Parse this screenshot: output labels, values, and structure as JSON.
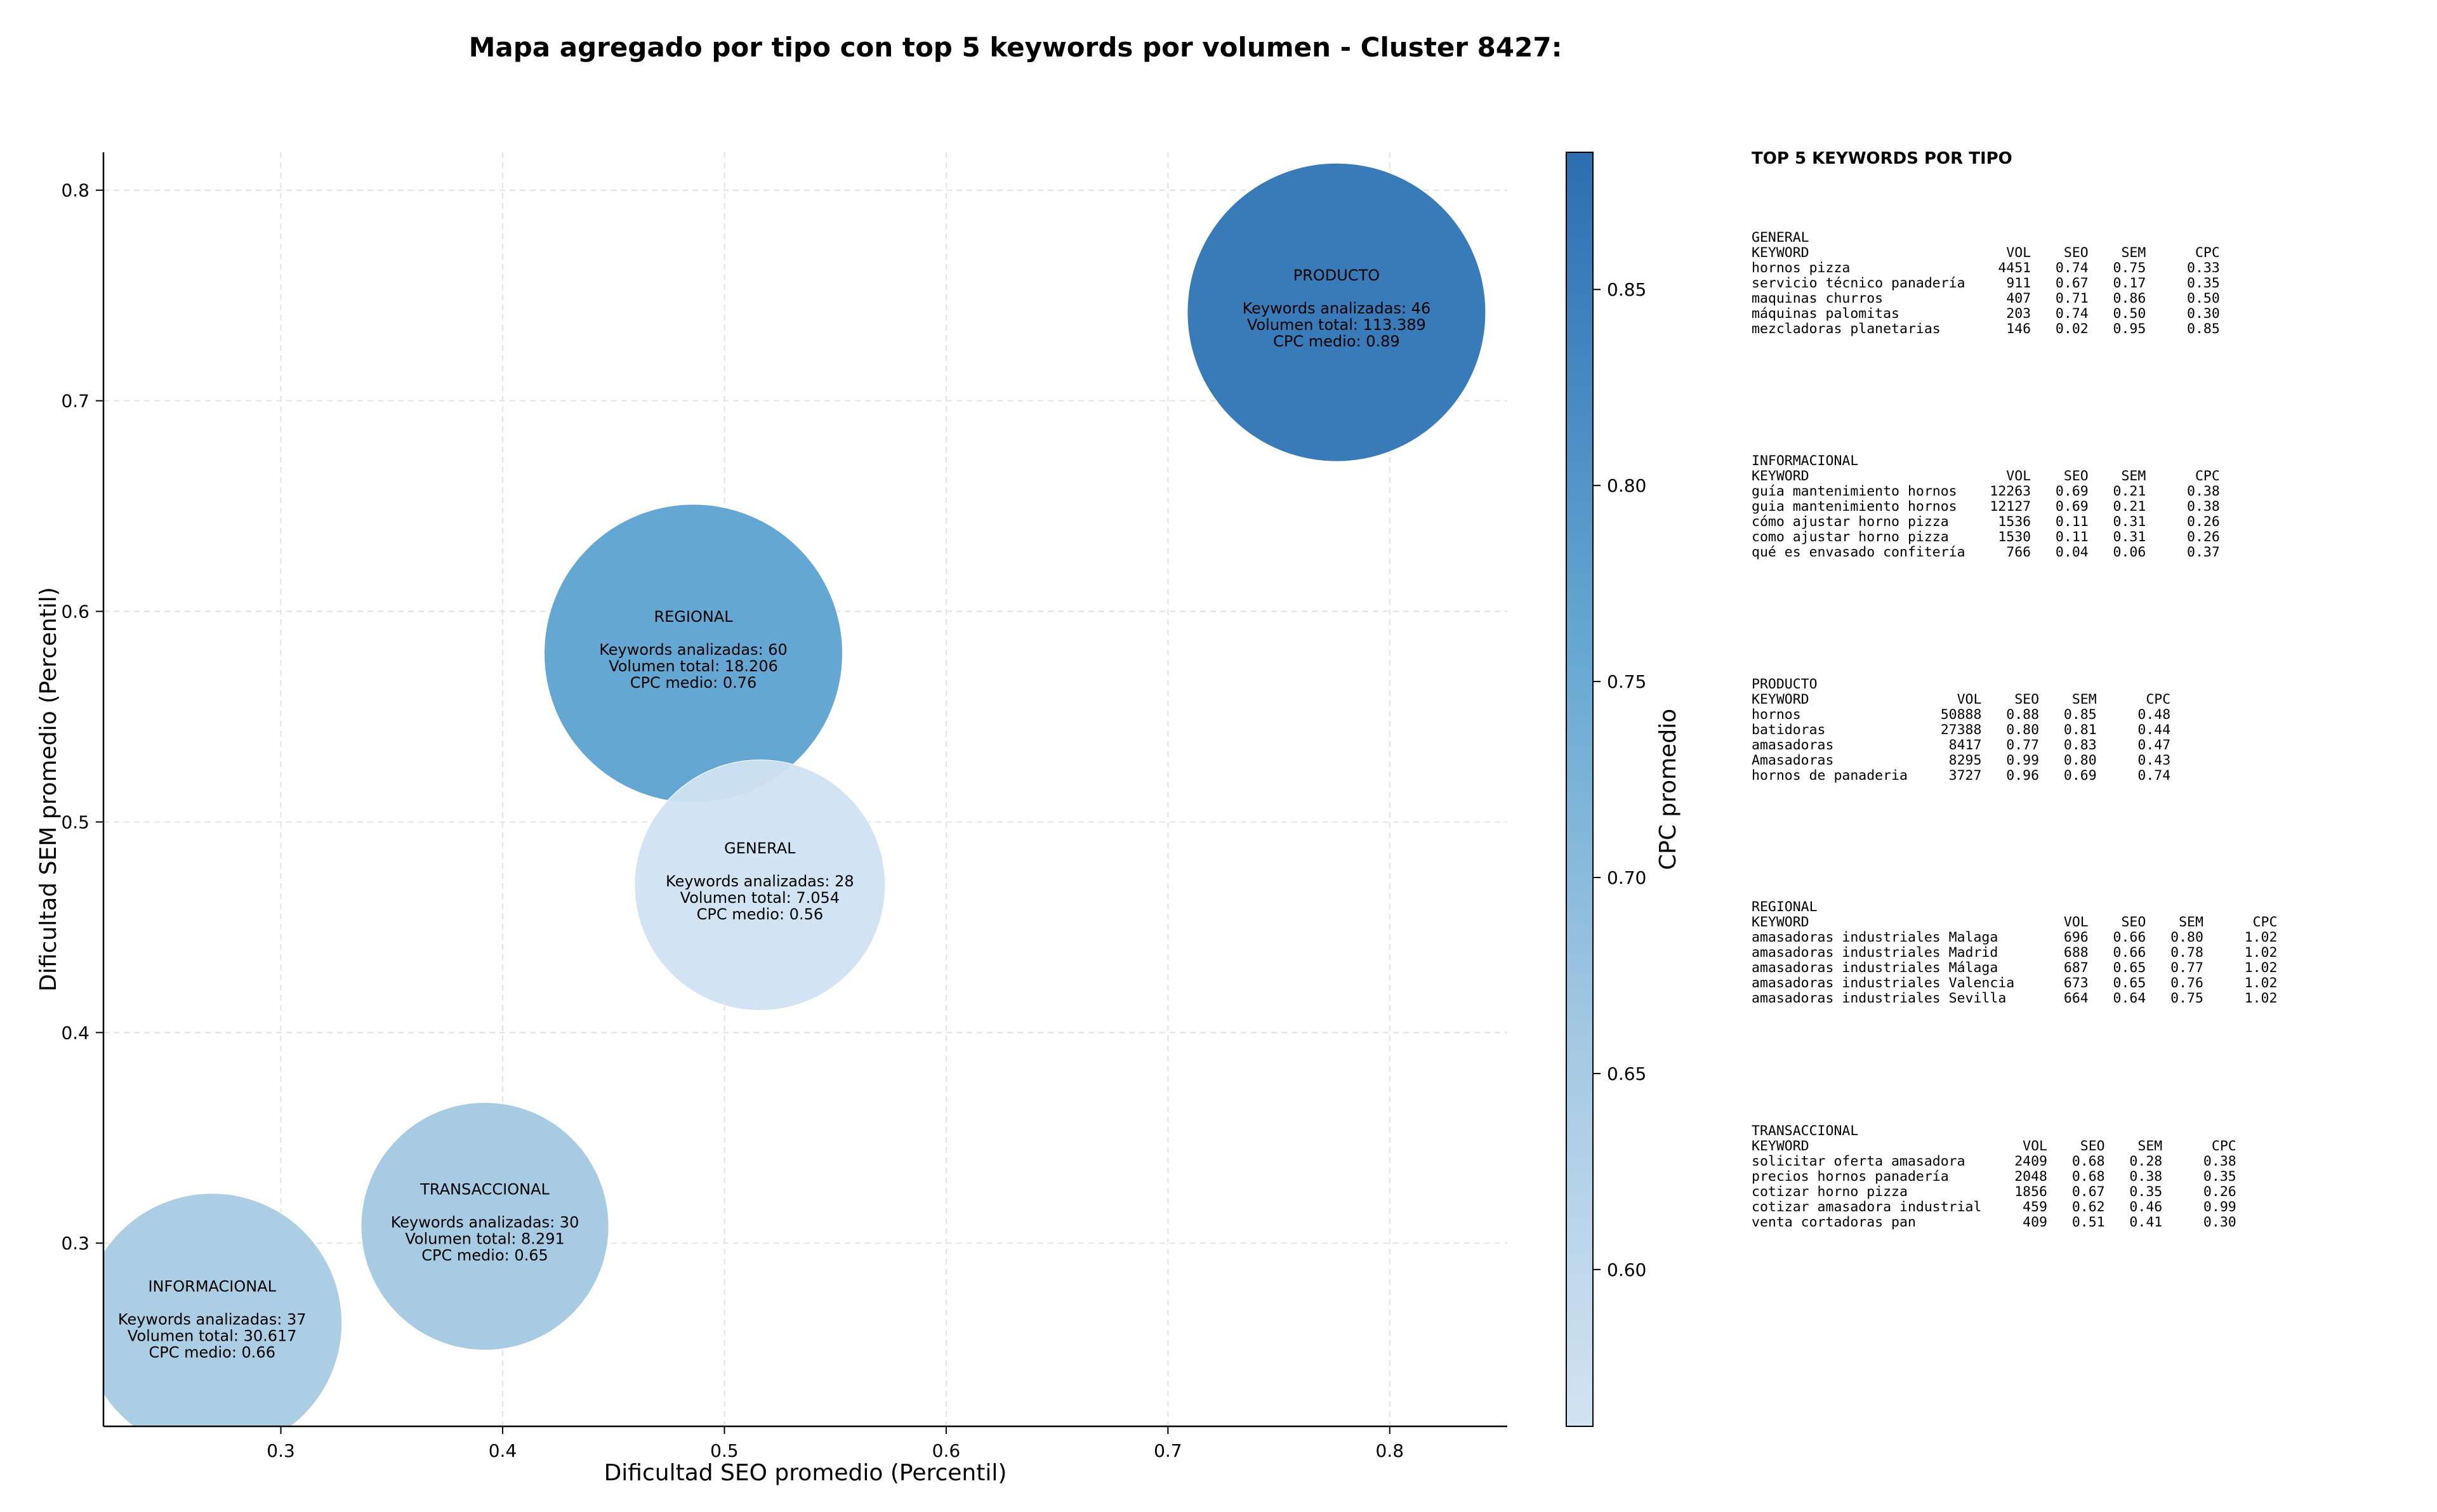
{
  "chart_data": {
    "type": "scatter",
    "title": "Mapa agregado por tipo con top 5 keywords por volumen - Cluster 8427:",
    "xlabel": "Dificultad SEO promedio (Percentil)",
    "ylabel": "Dificultad SEM promedio (Percentil)",
    "xlim": [
      0.22,
      0.853
    ],
    "ylim": [
      0.213,
      0.818
    ],
    "xticks": [
      "0.3",
      "0.4",
      "0.5",
      "0.6",
      "0.7",
      "0.8"
    ],
    "yticks": [
      "0.3",
      "0.4",
      "0.5",
      "0.6",
      "0.7",
      "0.8"
    ],
    "grid": true,
    "colorbar": {
      "label": "CPC promedio",
      "range": [
        0.56,
        0.885
      ],
      "ticks": [
        "0.60",
        "0.65",
        "0.70",
        "0.75",
        "0.80",
        "0.85"
      ],
      "color_low": "#d2e3f3",
      "color_high": "#2b6fb2"
    },
    "points": [
      {
        "type": "PRODUCTO",
        "x": 0.776,
        "y": 0.742,
        "cpc": 0.89,
        "radius_rel": 1.0,
        "color": "#2e73b5",
        "lines": [
          "Keywords analizadas: 46",
          "Volumen total: 113.389",
          "CPC medio: 0.89"
        ]
      },
      {
        "type": "REGIONAL",
        "x": 0.486,
        "y": 0.58,
        "cpc": 0.76,
        "radius_rel": 1.0,
        "color": "#5ca2d0",
        "lines": [
          "Keywords analizadas: 60",
          "Volumen total: 18.206",
          "CPC medio: 0.76"
        ]
      },
      {
        "type": "GENERAL",
        "x": 0.516,
        "y": 0.47,
        "cpc": 0.56,
        "radius_rel": 0.84,
        "color": "#d0e1f2",
        "lines": [
          "Keywords analizadas: 28",
          "Volumen total: 7.054",
          "CPC medio: 0.56"
        ]
      },
      {
        "type": "TRANSACCIONAL",
        "x": 0.392,
        "y": 0.308,
        "cpc": 0.65,
        "radius_rel": 0.83,
        "color": "#a2c8e2",
        "lines": [
          "Keywords analizadas: 30",
          "Volumen total: 8.291",
          "CPC medio: 0.65"
        ]
      },
      {
        "type": "INFORMACIONAL",
        "x": 0.269,
        "y": 0.262,
        "cpc": 0.66,
        "radius_rel": 0.87,
        "color": "#a6cbe3",
        "lines": [
          "Keywords analizadas: 37",
          "Volumen total: 30.617",
          "CPC medio: 0.66"
        ]
      }
    ]
  },
  "panel": {
    "title": "TOP 5 KEYWORDS POR TIPO",
    "blocks": [
      {
        "name": "GENERAL",
        "lines": [
          "GENERAL",
          "KEYWORD                        VOL    SEO    SEM      CPC",
          "hornos pizza                  4451   0.74   0.75     0.33",
          "servicio técnico panadería     911   0.67   0.17     0.35",
          "maquinas churros               407   0.71   0.86     0.50",
          "máquinas palomitas             203   0.74   0.50     0.30",
          "mezcladoras planetarias        146   0.02   0.95     0.85"
        ]
      },
      {
        "name": "INFORMACIONAL",
        "lines": [
          "INFORMACIONAL",
          "KEYWORD                        VOL    SEO    SEM      CPC",
          "guía mantenimiento hornos    12263   0.69   0.21     0.38",
          "guia mantenimiento hornos    12127   0.69   0.21     0.38",
          "cómo ajustar horno pizza      1536   0.11   0.31     0.26",
          "como ajustar horno pizza      1530   0.11   0.31     0.26",
          "qué es envasado confitería     766   0.04   0.06     0.37"
        ]
      },
      {
        "name": "PRODUCTO",
        "lines": [
          "PRODUCTO",
          "KEYWORD                  VOL    SEO    SEM      CPC",
          "hornos                 50888   0.88   0.85     0.48",
          "batidoras              27388   0.80   0.81     0.44",
          "amasadoras              8417   0.77   0.83     0.47",
          "Amasadoras              8295   0.99   0.80     0.43",
          "hornos de panaderia     3727   0.96   0.69     0.74"
        ]
      },
      {
        "name": "REGIONAL",
        "lines": [
          "REGIONAL",
          "KEYWORD                               VOL    SEO    SEM      CPC",
          "amasadoras industriales Malaga        696   0.66   0.80     1.02",
          "amasadoras industriales Madrid        688   0.66   0.78     1.02",
          "amasadoras industriales Málaga        687   0.65   0.77     1.02",
          "amasadoras industriales Valencia      673   0.65   0.76     1.02",
          "amasadoras industriales Sevilla       664   0.64   0.75     1.02"
        ]
      },
      {
        "name": "TRANSACCIONAL",
        "lines": [
          "TRANSACCIONAL",
          "KEYWORD                          VOL    SEO    SEM      CPC",
          "solicitar oferta amasadora      2409   0.68   0.28     0.38",
          "precios hornos panadería        2048   0.68   0.38     0.35",
          "cotizar horno pizza             1856   0.67   0.35     0.26",
          "cotizar amasadora industrial     459   0.62   0.46     0.99",
          "venta cortadoras pan             409   0.51   0.41     0.30"
        ]
      }
    ]
  }
}
